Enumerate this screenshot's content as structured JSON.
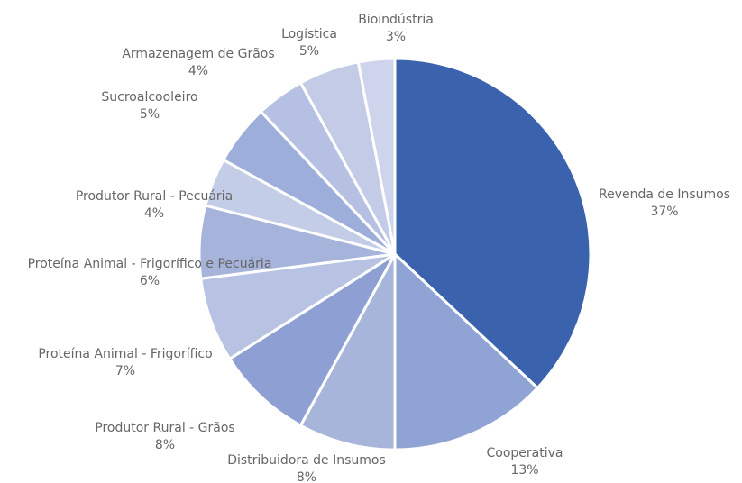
{
  "chart_data": {
    "type": "pie",
    "categories": [
      "Revenda de Insumos",
      "Cooperativa",
      "Distribuidora de Insumos",
      "Produtor Rural - Grãos",
      "Proteína Animal - Frigorífico",
      "Proteína Animal - Frigorífico e Pecuária",
      "Produtor Rural - Pecuária",
      "Sucroalcooleiro",
      "Armazenagem de Grãos",
      "Logística",
      "Bioindústria"
    ],
    "values": [
      37,
      13,
      8,
      8,
      7,
      6,
      4,
      5,
      4,
      5,
      3
    ],
    "value_labels": [
      "37%",
      "13%",
      "8%",
      "8%",
      "7%",
      "6%",
      "4%",
      "5%",
      "4%",
      "5%",
      "3%"
    ],
    "colors": [
      "#3a62ad",
      "#8fa3d4",
      "#a8b5da",
      "#8ea0d3",
      "#b8c3e4",
      "#a6b3da",
      "#c4cde8",
      "#9eaedb",
      "#b5c0e2",
      "#c3cbe7",
      "#cdd4ec"
    ]
  }
}
